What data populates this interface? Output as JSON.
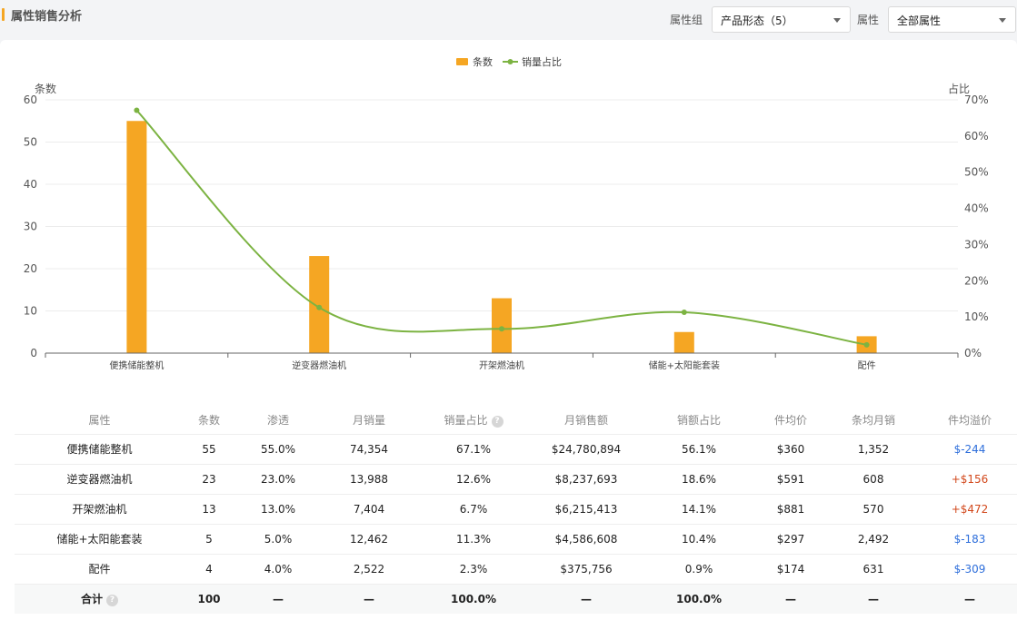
{
  "header": {
    "title": "属性销售分析",
    "group_label": "属性组",
    "group_value": "产品形态（5）",
    "attr_label": "属性",
    "attr_value": "全部属性"
  },
  "chart_data": {
    "type": "bar",
    "categories": [
      "便携储能整机",
      "逆变器燃油机",
      "开架燃油机",
      "储能+太阳能套装",
      "配件"
    ],
    "series": [
      {
        "name": "条数",
        "type": "bar",
        "axis": "left",
        "color": "#f5a623",
        "values": [
          55,
          23,
          13,
          5,
          4
        ]
      },
      {
        "name": "销量占比",
        "type": "line",
        "axis": "right",
        "color": "#7cb342",
        "values": [
          67.1,
          12.6,
          6.7,
          11.3,
          2.3
        ]
      }
    ],
    "ylabel": "条数",
    "ylabel_right": "占比",
    "ylim": [
      0,
      60
    ],
    "yticks": [
      "0",
      "10",
      "20",
      "30",
      "40",
      "50",
      "60"
    ],
    "ylim_right": [
      0,
      70
    ],
    "yticks_right": [
      "0%",
      "10%",
      "20%",
      "30%",
      "40%",
      "50%",
      "60%",
      "70%"
    ],
    "legend": "top-center",
    "grid": true
  },
  "table": {
    "headers": [
      "属性",
      "条数",
      "渗透",
      "月销量",
      "销量占比",
      "月销售额",
      "销额占比",
      "件均价",
      "条均月销",
      "件均溢价"
    ],
    "rows": [
      {
        "cells": [
          "便携储能整机",
          "55",
          "55.0%",
          "74,354",
          "67.1%",
          "$24,780,894",
          "56.1%",
          "$360",
          "1,352"
        ],
        "premium": "$-244",
        "premium_type": "neg"
      },
      {
        "cells": [
          "逆变器燃油机",
          "23",
          "23.0%",
          "13,988",
          "12.6%",
          "$8,237,693",
          "18.6%",
          "$591",
          "608"
        ],
        "premium": "+$156",
        "premium_type": "pos"
      },
      {
        "cells": [
          "开架燃油机",
          "13",
          "13.0%",
          "7,404",
          "6.7%",
          "$6,215,413",
          "14.1%",
          "$881",
          "570"
        ],
        "premium": "+$472",
        "premium_type": "pos"
      },
      {
        "cells": [
          "储能+太阳能套装",
          "5",
          "5.0%",
          "12,462",
          "11.3%",
          "$4,586,608",
          "10.4%",
          "$297",
          "2,492"
        ],
        "premium": "$-183",
        "premium_type": "neg"
      },
      {
        "cells": [
          "配件",
          "4",
          "4.0%",
          "2,522",
          "2.3%",
          "$375,756",
          "0.9%",
          "$174",
          "631"
        ],
        "premium": "$-309",
        "premium_type": "neg"
      }
    ],
    "total": [
      "合计",
      "100",
      "—",
      "—",
      "100.0%",
      "—",
      "100.0%",
      "—",
      "—",
      "—"
    ]
  }
}
